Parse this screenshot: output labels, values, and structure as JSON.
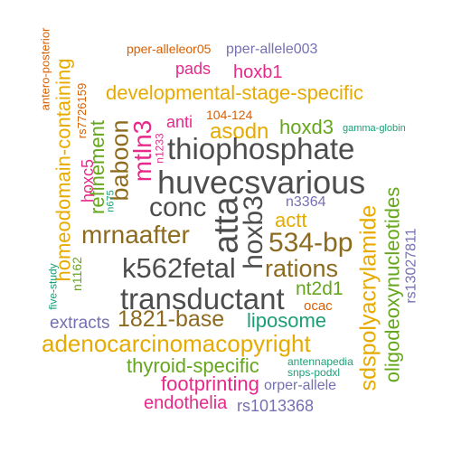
{
  "words": [
    {
      "text": "pper-alleleor05",
      "color": "#d95f02"
    },
    {
      "text": "pper-allele003",
      "color": "#7570b3"
    },
    {
      "text": "pads",
      "color": "#e7298a"
    },
    {
      "text": "hoxb1",
      "color": "#e7298a"
    },
    {
      "text": "developmental-stage-specific",
      "color": "#e6ab02"
    },
    {
      "text": "104-124",
      "color": "#d95f02"
    },
    {
      "text": "anti",
      "color": "#e7298a"
    },
    {
      "text": "asodn",
      "color": "#e6ab02"
    },
    {
      "text": "hoxd3",
      "color": "#66a61e"
    },
    {
      "text": "gamma-globin",
      "color": "#1b9e77"
    },
    {
      "text": "thiophosphate",
      "color": "#4d4d4d"
    },
    {
      "text": "huvecsvarious",
      "color": "#4d4d4d"
    },
    {
      "text": "conc",
      "color": "#4d4d4d"
    },
    {
      "text": "n3364",
      "color": "#7570b3"
    },
    {
      "text": "actt",
      "color": "#e6ab02"
    },
    {
      "text": "mrnaafter",
      "color": "#8c6b1f"
    },
    {
      "text": "534-bp",
      "color": "#8c6b1f"
    },
    {
      "text": "k562fetal",
      "color": "#4d4d4d"
    },
    {
      "text": "rations",
      "color": "#8c6b1f"
    },
    {
      "text": "nt2d1",
      "color": "#66a61e"
    },
    {
      "text": "transductant",
      "color": "#4d4d4d"
    },
    {
      "text": "ocac",
      "color": "#d95f02"
    },
    {
      "text": "1821-base",
      "color": "#8c6b1f"
    },
    {
      "text": "liposome",
      "color": "#1b9e77"
    },
    {
      "text": "extracts",
      "color": "#7570b3"
    },
    {
      "text": "adenocarcinomacopyright",
      "color": "#e6ab02"
    },
    {
      "text": "thyroid-specific",
      "color": "#66a61e"
    },
    {
      "text": "antennapedia",
      "color": "#1b9e77"
    },
    {
      "text": "snps-podxl",
      "color": "#1b9e77"
    },
    {
      "text": "footprinting",
      "color": "#e7298a"
    },
    {
      "text": "orper-allele",
      "color": "#7570b3"
    },
    {
      "text": "endothelia",
      "color": "#e7298a"
    },
    {
      "text": "rs1013368",
      "color": "#7570b3"
    },
    {
      "text": "antero-posterior",
      "color": "#d95f02"
    },
    {
      "text": "homeodomain-containing",
      "color": "#e6ab02"
    },
    {
      "text": "rs7726159",
      "color": "#d95f02"
    },
    {
      "text": "five-study",
      "color": "#1b9e77"
    },
    {
      "text": "n1162",
      "color": "#66a61e"
    },
    {
      "text": "refinement",
      "color": "#66a61e"
    },
    {
      "text": "hoxc5",
      "color": "#e7298a"
    },
    {
      "text": "baboon",
      "color": "#8c6b1f"
    },
    {
      "text": "mtln3",
      "color": "#e7298a"
    },
    {
      "text": "n1233",
      "color": "#e7298a"
    },
    {
      "text": "n675",
      "color": "#1b9e77"
    },
    {
      "text": "atta",
      "color": "#4d4d4d"
    },
    {
      "text": "hoxb3",
      "color": "#4d4d4d"
    },
    {
      "text": "sdspolyacrylamide",
      "color": "#e6ab02"
    },
    {
      "text": "oligodeoxynucleotides",
      "color": "#66a61e"
    },
    {
      "text": "rs13027811",
      "color": "#7570b3"
    }
  ]
}
